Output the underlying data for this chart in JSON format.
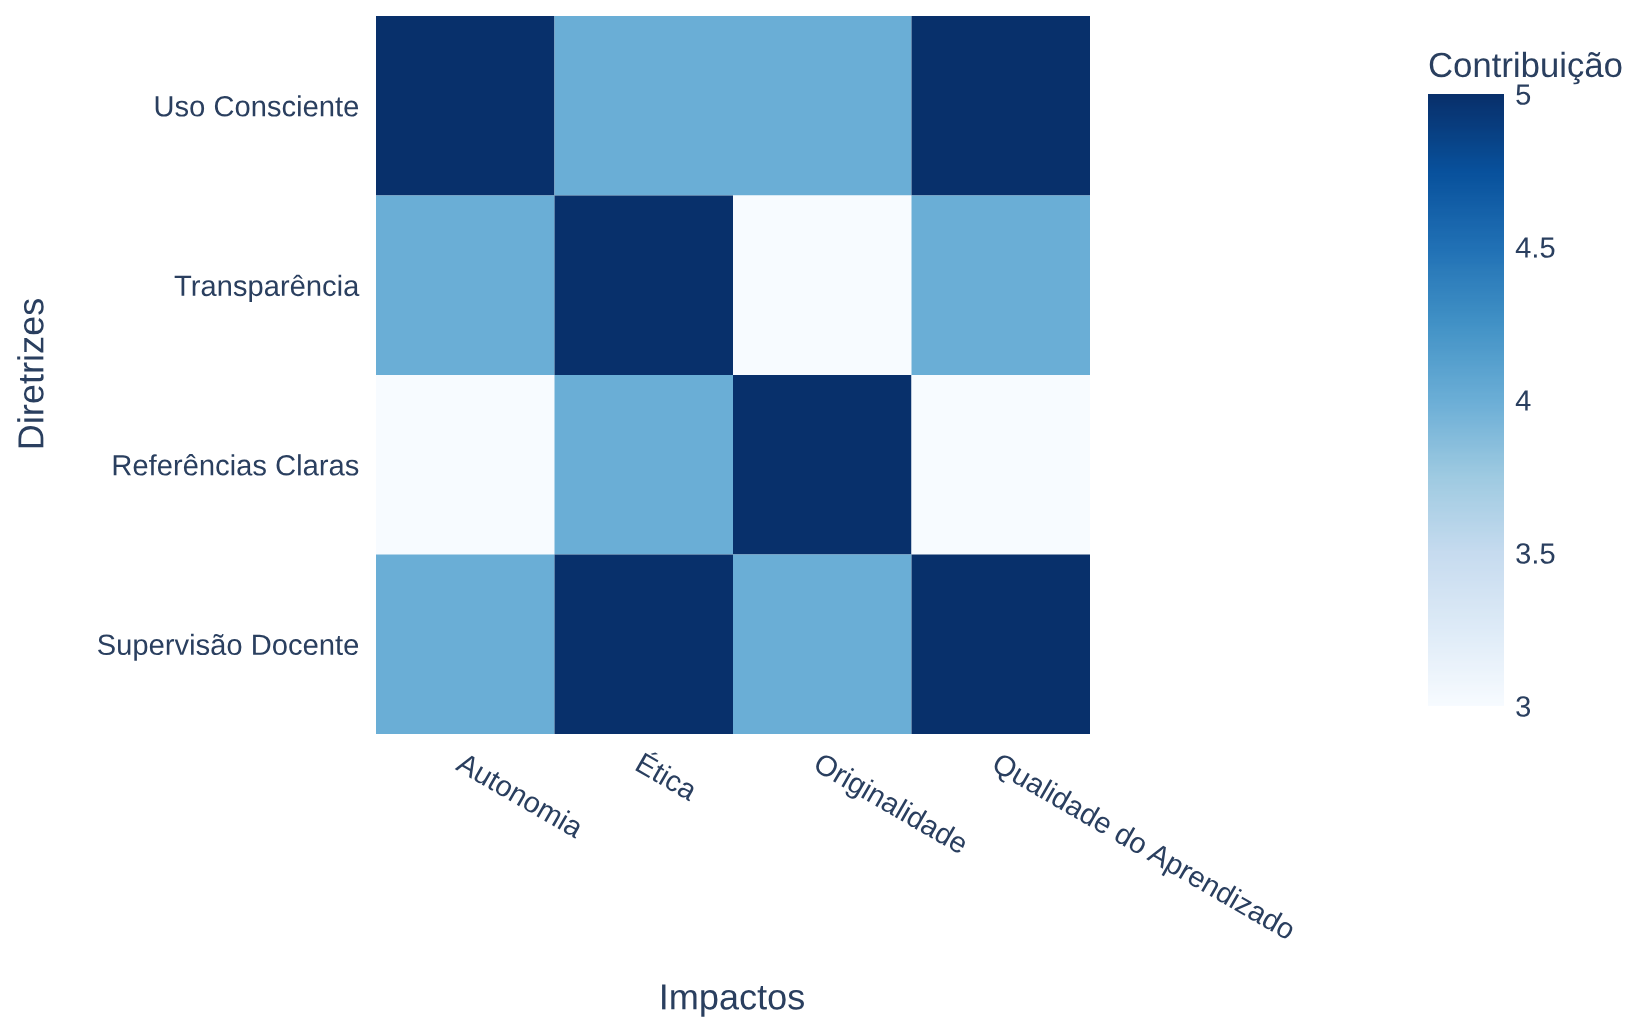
{
  "chart_data": {
    "type": "heatmap",
    "xlabel": "Impactos",
    "ylabel": "Diretrizes",
    "clabel": "Contribuição",
    "categories": [
      "Autonomia",
      "Ética",
      "Originalidade",
      "Qualidade do Aprendizado"
    ],
    "y_categories": [
      "Uso Consciente",
      "Transparência",
      "Referências Claras",
      "Supervisão Docente"
    ],
    "cells": [
      [
        5,
        4,
        4,
        5
      ],
      [
        4,
        5,
        3,
        4
      ],
      [
        3,
        4,
        5,
        3
      ],
      [
        4,
        5,
        4,
        5
      ]
    ],
    "clim": [
      3,
      5
    ],
    "cticks": [
      3,
      3.5,
      4,
      4.5,
      5
    ]
  }
}
